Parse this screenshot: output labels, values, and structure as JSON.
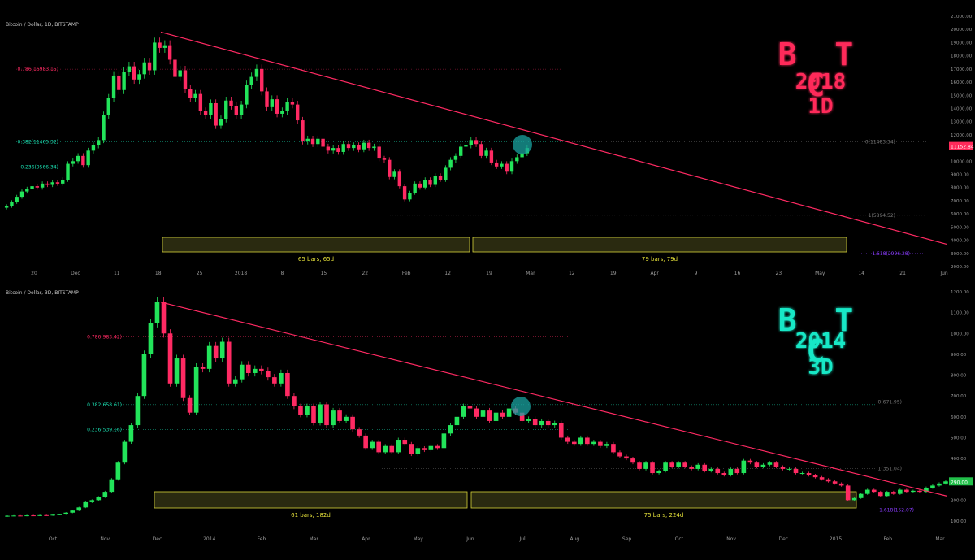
{
  "colors": {
    "up": "#22e45a",
    "down": "#ff2a63",
    "trend": "#ff2a63",
    "fib_red": "#ff2a63",
    "fib_green": "#1ae0b2",
    "fib_purple": "#8a3cff",
    "box_border": "#d7d43a",
    "box_fill": "#2a2a10",
    "box_text": "#e6e23a",
    "axis_text": "#9a9a9a",
    "btc2018": "#ff2a5a",
    "btc2014": "#17e8c6",
    "marker": "#1aa3a0"
  },
  "chart_data": [
    {
      "type": "candlestick",
      "title": "Bitcoin / Dollar, 1D, BITSTAMP",
      "overlay": {
        "line1": "B T C",
        "line2": "2018",
        "line3": "1D"
      },
      "y_ticks": [
        "21000.00",
        "20000.00",
        "19000.00",
        "18000.00",
        "17000.00",
        "16000.00",
        "15000.00",
        "14000.00",
        "13000.00",
        "12000.00",
        "11000.00",
        "10000.00",
        "9000.00",
        "8000.00",
        "7000.00",
        "6000.00",
        "5000.00",
        "4000.00",
        "3000.00",
        "2000.00"
      ],
      "ylim": [
        2000,
        21000
      ],
      "x_ticks": [
        "20",
        "Dec",
        "11",
        "18",
        "25",
        "2018",
        "8",
        "15",
        "22",
        "Feb",
        "12",
        "19",
        "Mar",
        "12",
        "19",
        "Apr",
        "9",
        "16",
        "23",
        "May",
        "14",
        "21",
        "Jun"
      ],
      "price_label": "11152.84",
      "fib_levels": [
        {
          "label": "0.786(16983.15)",
          "value": 16983.15,
          "color": "red"
        },
        {
          "label": "0.382(11465.32)",
          "value": 11465.32,
          "color": "green"
        },
        {
          "label": "0.236(9566.34)",
          "value": 9566.34,
          "color": "green"
        },
        {
          "label": "0(11483.34)",
          "value": 11483.34,
          "color": "grey"
        },
        {
          "label": "1(5894.52)",
          "value": 5894.52,
          "color": "grey"
        },
        {
          "label": "1.618(2996.28)",
          "value": 2996.28,
          "color": "purple"
        }
      ],
      "ranges": [
        {
          "label": "65 bars, 65d"
        },
        {
          "label": "79 bars, 79d"
        }
      ],
      "trendline": {
        "from": 19800,
        "to": 3700
      },
      "closes": [
        6600,
        6900,
        7300,
        7700,
        7900,
        8100,
        8000,
        8300,
        8200,
        8400,
        8300,
        8600,
        9800,
        10000,
        10400,
        9700,
        10800,
        11200,
        11600,
        13500,
        14800,
        16500,
        15400,
        16800,
        17200,
        16200,
        16600,
        17500,
        16900,
        19000,
        18600,
        18800,
        17700,
        16400,
        16900,
        15500,
        14800,
        15100,
        13800,
        13500,
        14400,
        12700,
        13200,
        14600,
        14200,
        13500,
        14300,
        15800,
        16400,
        17000,
        15300,
        14100,
        14700,
        13600,
        13800,
        14500,
        14300,
        13100,
        11500,
        11700,
        11300,
        11700,
        11100,
        10800,
        11000,
        10700,
        11300,
        11000,
        11200,
        10900,
        11400,
        11000,
        11100,
        10200,
        10100,
        8800,
        9200,
        8100,
        7100,
        7600,
        8300,
        8000,
        8600,
        8200,
        8900,
        8600,
        9500,
        10100,
        10400,
        11100,
        11200,
        11600,
        11300,
        10400,
        10800,
        9900,
        9600,
        9800,
        9200,
        10000,
        10300,
        10600,
        11000
      ],
      "note": "closes represent daily close estimates (USD) from mid-Nov 2017 onward"
    },
    {
      "type": "candlestick",
      "title": "Bitcoin / Dollar, 3D, BITSTAMP",
      "overlay": {
        "line1": "B T C",
        "line2": "2014",
        "line3": "3D"
      },
      "y_ticks": [
        "1200.00",
        "1100.00",
        "1000.00",
        "900.00",
        "800.00",
        "700.00",
        "600.00",
        "500.00",
        "400.00",
        "300.00",
        "200.00",
        "100.00"
      ],
      "ylim": [
        100,
        1200
      ],
      "x_ticks": [
        "Oct",
        "Nov",
        "Dec",
        "2014",
        "Feb",
        "Mar",
        "Apr",
        "May",
        "Jun",
        "Jul",
        "Aug",
        "Sep",
        "Oct",
        "Nov",
        "Dec",
        "2015",
        "Feb",
        "Mar"
      ],
      "price_label": "290.00",
      "fib_levels": [
        {
          "label": "0.786(983.42)",
          "value": 983.42,
          "color": "red"
        },
        {
          "label": "0.382(658.61)",
          "value": 658.61,
          "color": "green"
        },
        {
          "label": "0.236(539.16)",
          "value": 539.16,
          "color": "green"
        },
        {
          "label": "0(671.95)",
          "value": 671.95,
          "color": "grey"
        },
        {
          "label": "1(351.04)",
          "value": 351.04,
          "color": "grey"
        },
        {
          "label": "1.618(152.07)",
          "value": 152.07,
          "color": "purple"
        }
      ],
      "ranges": [
        {
          "label": "61 bars, 182d"
        },
        {
          "label": "75 bars, 224d"
        }
      ],
      "trendline": {
        "from": 1150,
        "to": 220
      },
      "closes": [
        125,
        126,
        125,
        127,
        126,
        128,
        127,
        130,
        132,
        140,
        150,
        165,
        190,
        200,
        215,
        240,
        300,
        380,
        480,
        560,
        700,
        900,
        1050,
        1150,
        1000,
        760,
        880,
        690,
        620,
        840,
        830,
        940,
        880,
        960,
        760,
        780,
        850,
        810,
        830,
        820,
        790,
        760,
        810,
        700,
        650,
        610,
        650,
        570,
        660,
        560,
        630,
        580,
        600,
        540,
        510,
        450,
        480,
        430,
        460,
        430,
        490,
        470,
        420,
        450,
        440,
        460,
        450,
        520,
        560,
        600,
        650,
        640,
        600,
        630,
        580,
        620,
        600,
        640,
        620,
        580,
        590,
        560,
        580,
        560,
        570,
        500,
        480,
        470,
        500,
        470,
        480,
        460,
        470,
        430,
        410,
        400,
        380,
        350,
        380,
        330,
        340,
        380,
        360,
        380,
        360,
        350,
        370,
        340,
        350,
        330,
        320,
        350,
        330,
        390,
        380,
        360,
        370,
        380,
        360,
        350,
        350,
        330,
        330,
        320,
        310,
        300,
        290,
        280,
        270,
        200,
        210,
        230,
        250,
        240,
        220,
        240,
        230,
        250,
        240,
        245,
        240,
        260,
        270,
        280,
        290
      ]
    }
  ]
}
